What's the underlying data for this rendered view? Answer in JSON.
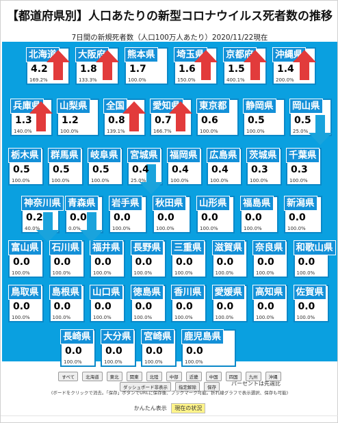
{
  "title": "【都道府県別】人口あたりの新型コロナウイルス死者数の推移",
  "subtitle": "7日間の新規死者数（人口100万人あたり）2020/11/22現在",
  "colors": {
    "board": "#0aa0e0",
    "label": "#1390d8",
    "up": "#e23b3b",
    "down": "#1aa3dc"
  },
  "prefectures": [
    {
      "name": "北海道",
      "value": "4.2",
      "pct": "169.2%",
      "trend": "up"
    },
    {
      "name": "大阪府",
      "value": "1.8",
      "pct": "133.3%",
      "trend": "up"
    },
    {
      "name": "熊本県",
      "value": "1.7",
      "pct": "100.0%",
      "trend": "none"
    },
    {
      "name": "埼玉県",
      "value": "1.6",
      "pct": "150.0%",
      "trend": "up"
    },
    {
      "name": "京都府",
      "value": "1.5",
      "pct": "400.1%",
      "trend": "up"
    },
    {
      "name": "沖縄県",
      "value": "1.4",
      "pct": "200.0%",
      "trend": "up"
    },
    {
      "name": "兵庫県",
      "value": "1.3",
      "pct": "140.0%",
      "trend": "up"
    },
    {
      "name": "山梨県",
      "value": "1.2",
      "pct": "100.0%",
      "trend": "none"
    },
    {
      "name": "全国",
      "value": "0.8",
      "pct": "139.1%",
      "trend": "up"
    },
    {
      "name": "愛知県",
      "value": "0.7",
      "pct": "166.7%",
      "trend": "up"
    },
    {
      "name": "東京都",
      "value": "0.6",
      "pct": "100.0%",
      "trend": "none"
    },
    {
      "name": "静岡県",
      "value": "0.5",
      "pct": "100.0%",
      "trend": "none"
    },
    {
      "name": "岡山県",
      "value": "0.5",
      "pct": "25.0%",
      "trend": "down"
    },
    {
      "name": "栃木県",
      "value": "0.5",
      "pct": "100.0%",
      "trend": "none"
    },
    {
      "name": "群馬県",
      "value": "0.5",
      "pct": "100.0%",
      "trend": "none"
    },
    {
      "name": "岐阜県",
      "value": "0.5",
      "pct": "100.0%",
      "trend": "none"
    },
    {
      "name": "宮城県",
      "value": "0.4",
      "pct": "25.0%",
      "trend": "down"
    },
    {
      "name": "福岡県",
      "value": "0.4",
      "pct": "100.0%",
      "trend": "none"
    },
    {
      "name": "広島県",
      "value": "0.4",
      "pct": "100.0%",
      "trend": "none"
    },
    {
      "name": "茨城県",
      "value": "0.3",
      "pct": "100.0%",
      "trend": "none"
    },
    {
      "name": "千葉県",
      "value": "0.3",
      "pct": "100.0%",
      "trend": "none"
    },
    {
      "name": "神奈川県",
      "value": "0.2",
      "pct": "40.0%",
      "trend": "down"
    },
    {
      "name": "青森県",
      "value": "0.0",
      "pct": "0.0%",
      "trend": "down"
    },
    {
      "name": "岩手県",
      "value": "0.0",
      "pct": "100.0%",
      "trend": "none"
    },
    {
      "name": "秋田県",
      "value": "0.0",
      "pct": "100.0%",
      "trend": "none"
    },
    {
      "name": "山形県",
      "value": "0.0",
      "pct": "100.0%",
      "trend": "none"
    },
    {
      "name": "福島県",
      "value": "0.0",
      "pct": "100.0%",
      "trend": "none"
    },
    {
      "name": "新潟県",
      "value": "0.0",
      "pct": "100.0%",
      "trend": "none"
    },
    {
      "name": "富山県",
      "value": "0.0",
      "pct": "100.0%",
      "trend": "none"
    },
    {
      "name": "石川県",
      "value": "0.0",
      "pct": "100.0%",
      "trend": "none"
    },
    {
      "name": "福井県",
      "value": "0.0",
      "pct": "100.0%",
      "trend": "none"
    },
    {
      "name": "長野県",
      "value": "0.0",
      "pct": "100.0%",
      "trend": "none"
    },
    {
      "name": "三重県",
      "value": "0.0",
      "pct": "100.0%",
      "trend": "none"
    },
    {
      "name": "滋賀県",
      "value": "0.0",
      "pct": "100.0%",
      "trend": "none"
    },
    {
      "name": "奈良県",
      "value": "0.0",
      "pct": "100.0%",
      "trend": "none"
    },
    {
      "name": "和歌山県",
      "value": "0.0",
      "pct": "100.0%",
      "trend": "none"
    },
    {
      "name": "鳥取県",
      "value": "0.0",
      "pct": "100.0%",
      "trend": "none"
    },
    {
      "name": "島根県",
      "value": "0.0",
      "pct": "100.0%",
      "trend": "none"
    },
    {
      "name": "山口県",
      "value": "0.0",
      "pct": "100.0%",
      "trend": "none"
    },
    {
      "name": "徳島県",
      "value": "0.0",
      "pct": "100.0%",
      "trend": "none"
    },
    {
      "name": "香川県",
      "value": "0.0",
      "pct": "100.0%",
      "trend": "none"
    },
    {
      "name": "愛媛県",
      "value": "0.0",
      "pct": "100.0%",
      "trend": "none"
    },
    {
      "name": "高知県",
      "value": "0.0",
      "pct": "100.0%",
      "trend": "none"
    },
    {
      "name": "佐賀県",
      "value": "0.0",
      "pct": "100.0%",
      "trend": "none"
    },
    {
      "name": "長崎県",
      "value": "0.0",
      "pct": "100.0%",
      "trend": "none"
    },
    {
      "name": "大分県",
      "value": "0.0",
      "pct": "100.0%",
      "trend": "none"
    },
    {
      "name": "宮崎県",
      "value": "0.0",
      "pct": "100.0%",
      "trend": "none"
    },
    {
      "name": "鹿児島県",
      "value": "0.0",
      "pct": "100.0%",
      "trend": "none"
    }
  ],
  "note": "パーセントは先週比",
  "region_buttons": [
    "すべて",
    "北海道",
    "東北",
    "関東",
    "北陸",
    "中部",
    "近畿",
    "中国",
    "四国",
    "九州",
    "沖縄"
  ],
  "action_buttons": [
    "ダッシュボード非表示",
    "指定解除",
    "保存"
  ],
  "help_text": "(ボードをクリックで消去。「保存」ボタンでURLに保存後、ブックマーク可能。折れ線グラフで表示選択、保存も可能)",
  "mode_label": "かんたん表示",
  "mode_button": "現在の状況"
}
